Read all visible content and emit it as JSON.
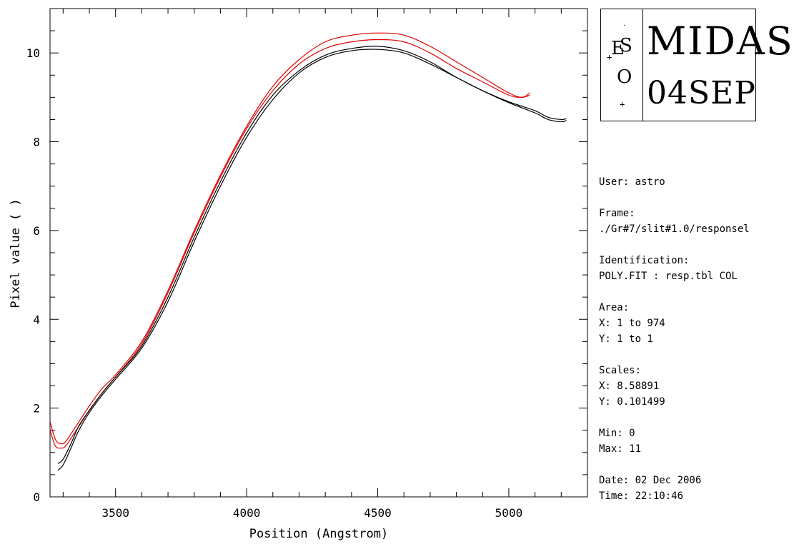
{
  "chart_data": {
    "type": "line",
    "xlabel": "Position (Angstrom)",
    "ylabel": "Pixel value ( )",
    "xlim": [
      3250,
      5300
    ],
    "ylim": [
      0,
      11
    ],
    "x_ticks": [
      3500,
      4000,
      4500,
      5000
    ],
    "y_ticks": [
      0,
      2,
      4,
      6,
      8,
      10
    ],
    "grid": false,
    "series": [
      {
        "color": "#e00000",
        "points": [
          [
            3250,
            1.7
          ],
          [
            3270,
            1.3
          ],
          [
            3290,
            1.2
          ],
          [
            3310,
            1.25
          ],
          [
            3350,
            1.6
          ],
          [
            3400,
            2.05
          ],
          [
            3450,
            2.45
          ],
          [
            3500,
            2.75
          ],
          [
            3600,
            3.5
          ],
          [
            3700,
            4.65
          ],
          [
            3800,
            6.0
          ],
          [
            3900,
            7.25
          ],
          [
            4000,
            8.35
          ],
          [
            4100,
            9.25
          ],
          [
            4200,
            9.85
          ],
          [
            4300,
            10.25
          ],
          [
            4400,
            10.4
          ],
          [
            4500,
            10.45
          ],
          [
            4600,
            10.4
          ],
          [
            4700,
            10.15
          ],
          [
            4800,
            9.8
          ],
          [
            4900,
            9.45
          ],
          [
            5000,
            9.1
          ],
          [
            5050,
            9.0
          ],
          [
            5080,
            9.1
          ]
        ]
      },
      {
        "color": "#e00000",
        "points": [
          [
            3250,
            1.5
          ],
          [
            3270,
            1.15
          ],
          [
            3290,
            1.1
          ],
          [
            3310,
            1.15
          ],
          [
            3350,
            1.5
          ],
          [
            3400,
            1.95
          ],
          [
            3450,
            2.35
          ],
          [
            3500,
            2.7
          ],
          [
            3600,
            3.45
          ],
          [
            3700,
            4.6
          ],
          [
            3800,
            5.95
          ],
          [
            3900,
            7.2
          ],
          [
            4000,
            8.3
          ],
          [
            4100,
            9.15
          ],
          [
            4200,
            9.75
          ],
          [
            4300,
            10.1
          ],
          [
            4400,
            10.25
          ],
          [
            4500,
            10.3
          ],
          [
            4600,
            10.25
          ],
          [
            4700,
            10.0
          ],
          [
            4800,
            9.65
          ],
          [
            4900,
            9.35
          ],
          [
            5000,
            9.05
          ],
          [
            5050,
            9.0
          ],
          [
            5080,
            9.05
          ]
        ]
      },
      {
        "color": "#000000",
        "points": [
          [
            3280,
            0.75
          ],
          [
            3300,
            0.85
          ],
          [
            3330,
            1.2
          ],
          [
            3360,
            1.6
          ],
          [
            3400,
            1.95
          ],
          [
            3450,
            2.35
          ],
          [
            3500,
            2.7
          ],
          [
            3600,
            3.4
          ],
          [
            3700,
            4.5
          ],
          [
            3800,
            5.85
          ],
          [
            3900,
            7.1
          ],
          [
            4000,
            8.2
          ],
          [
            4100,
            9.05
          ],
          [
            4200,
            9.6
          ],
          [
            4300,
            9.95
          ],
          [
            4400,
            10.1
          ],
          [
            4500,
            10.15
          ],
          [
            4600,
            10.05
          ],
          [
            4700,
            9.8
          ],
          [
            4800,
            9.45
          ],
          [
            4900,
            9.15
          ],
          [
            5000,
            8.9
          ],
          [
            5100,
            8.7
          ],
          [
            5150,
            8.55
          ],
          [
            5200,
            8.5
          ],
          [
            5220,
            8.52
          ]
        ]
      },
      {
        "color": "#000000",
        "points": [
          [
            3280,
            0.6
          ],
          [
            3300,
            0.72
          ],
          [
            3330,
            1.1
          ],
          [
            3360,
            1.5
          ],
          [
            3400,
            1.9
          ],
          [
            3450,
            2.3
          ],
          [
            3500,
            2.65
          ],
          [
            3600,
            3.35
          ],
          [
            3700,
            4.4
          ],
          [
            3800,
            5.75
          ],
          [
            3900,
            7.0
          ],
          [
            4000,
            8.1
          ],
          [
            4100,
            8.95
          ],
          [
            4200,
            9.55
          ],
          [
            4300,
            9.9
          ],
          [
            4400,
            10.05
          ],
          [
            4500,
            10.08
          ],
          [
            4600,
            10.0
          ],
          [
            4700,
            9.75
          ],
          [
            4800,
            9.45
          ],
          [
            4900,
            9.15
          ],
          [
            5000,
            8.88
          ],
          [
            5100,
            8.65
          ],
          [
            5150,
            8.5
          ],
          [
            5200,
            8.45
          ],
          [
            5220,
            8.48
          ]
        ]
      }
    ]
  },
  "logo": {
    "main_text": "MIDAS",
    "date_text": "04SEP",
    "eso_letters": [
      "E",
      "S",
      "O"
    ]
  },
  "info": {
    "user": "User: astro",
    "frame_label": "Frame:",
    "frame_value": "./Gr#7/slit#1.0/responsel",
    "identification_label": "Identification:",
    "identification_value": "POLY.FIT : resp.tbl COL",
    "area_label": "Area:",
    "area_x": "X: 1 to 974",
    "area_y": "Y: 1 to 1",
    "scales_label": "Scales:",
    "scales_x": "X: 8.58891",
    "scales_y": "Y: 0.101499",
    "min": "Min: 0",
    "max": "Max: 11",
    "date": "Date: 02 Dec 2006",
    "time": "Time: 22:10:46"
  }
}
